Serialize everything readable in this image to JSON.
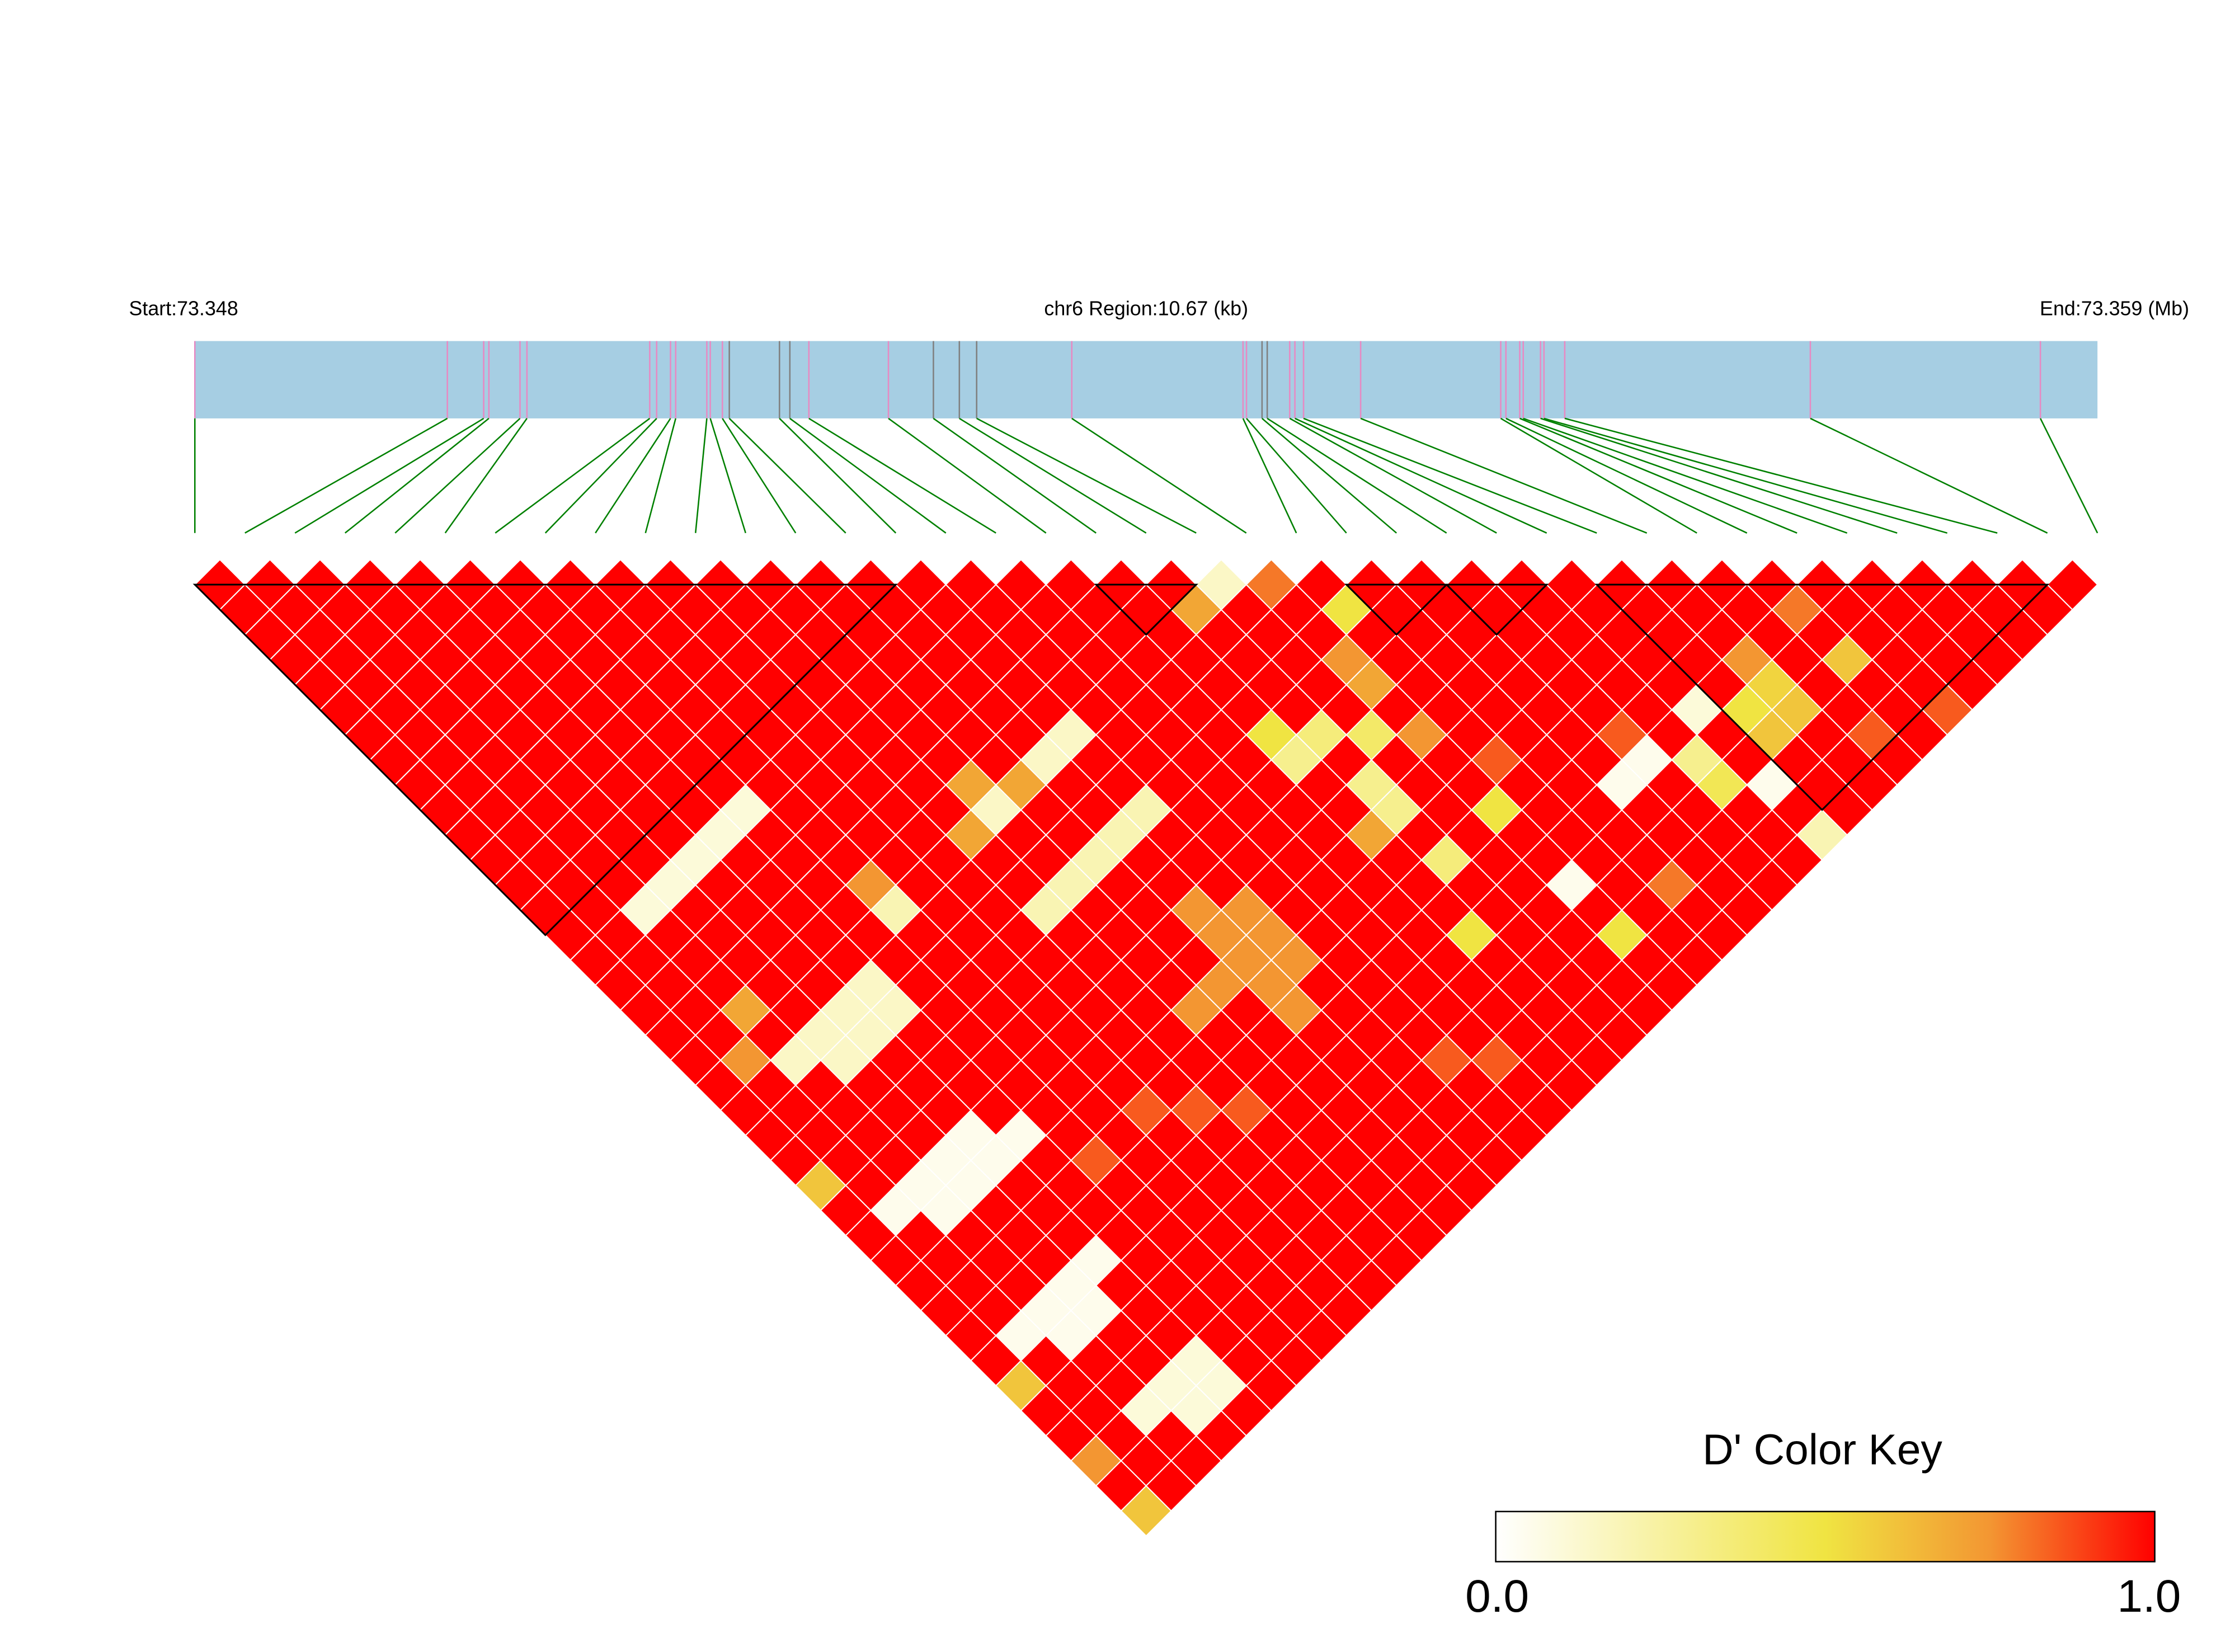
{
  "header": {
    "start_label": "Start:73.348",
    "region_label": "chr6 Region:10.67 (kb)",
    "end_label": "End:73.359 (Mb)"
  },
  "colors": {
    "gene_bar": "#A6CEE3",
    "snp_marker": "#E78AC3",
    "snp_marker_alt": "#808080",
    "connector": "#008000",
    "block_outline": "#000000",
    "scale_low": "#FFFFFF",
    "scale_mid": "#F0E442",
    "scale_orange": "#F39632",
    "scale_high": "#FF0000"
  },
  "color_key": {
    "title": "D' Color Key",
    "min_label": "0.0",
    "max_label": "1.0"
  },
  "chart_data": {
    "type": "heatmap",
    "measure": "D'",
    "chromosome": "chr6",
    "region_start_mb": 73.348,
    "region_end_mb": 73.359,
    "region_length_kb": 10.67,
    "snp_positions_mb": [
      73.348,
      73.34946,
      73.34967,
      73.3497,
      73.34988,
      73.34992,
      73.35063,
      73.35067,
      73.35075,
      73.35078,
      73.35096,
      73.35098,
      73.35105,
      73.35109,
      73.35138,
      73.35144,
      73.35155,
      73.35201,
      73.35227,
      73.35242,
      73.35252,
      73.35307,
      73.35406,
      73.35408,
      73.35417,
      73.3542,
      73.35433,
      73.35436,
      73.35441,
      73.35474,
      73.35555,
      73.35558,
      73.35566,
      73.35568,
      73.35578,
      73.3558,
      73.35592,
      73.35734,
      73.35867
    ],
    "alt_marker_snps": [
      13,
      14,
      15,
      18,
      19,
      20,
      24,
      25
    ],
    "default_value": 1.0,
    "value_range": [
      0,
      1
    ],
    "cells": [
      [
        20,
        21,
        0.15
      ],
      [
        19,
        21,
        0.7
      ],
      [
        21,
        22,
        0.8
      ],
      [
        22,
        24,
        0.5
      ],
      [
        21,
        25,
        0.75
      ],
      [
        21,
        26,
        0.7
      ],
      [
        18,
        25,
        0.5
      ],
      [
        18,
        26,
        0.3
      ],
      [
        19,
        26,
        0.35
      ],
      [
        20,
        27,
        0.4
      ],
      [
        21,
        28,
        0.75
      ],
      [
        19,
        28,
        0.3
      ],
      [
        19,
        29,
        0.3
      ],
      [
        18,
        29,
        0.7
      ],
      [
        21,
        31,
        0.5
      ],
      [
        19,
        31,
        0.35
      ],
      [
        18,
        33,
        0.5
      ],
      [
        21,
        34,
        0.05
      ],
      [
        21,
        36,
        0.5
      ],
      [
        24,
        33,
        0.05
      ],
      [
        25,
        33,
        0.05
      ],
      [
        26,
        34,
        0.3
      ],
      [
        27,
        33,
        0.1
      ],
      [
        26,
        35,
        0.45
      ],
      [
        27,
        36,
        0.05
      ],
      [
        27,
        38,
        0.2
      ],
      [
        28,
        34,
        0.5
      ],
      [
        29,
        34,
        0.55
      ],
      [
        28,
        35,
        0.6
      ],
      [
        29,
        35,
        0.6
      ],
      [
        29,
        33,
        0.75
      ],
      [
        31,
        35,
        0.6
      ],
      [
        31,
        33,
        0.8
      ],
      [
        2,
        16,
        0.1
      ],
      [
        3,
        16,
        0.1
      ],
      [
        4,
        16,
        0.1
      ],
      [
        5,
        16,
        0.1
      ],
      [
        6,
        16,
        0.1
      ],
      [
        7,
        21,
        0.2
      ],
      [
        7,
        20,
        0.75
      ],
      [
        10,
        24,
        0.2
      ],
      [
        11,
        24,
        0.2
      ],
      [
        12,
        24,
        0.2
      ],
      [
        13,
        24,
        0.2
      ],
      [
        14,
        24,
        0.2
      ],
      [
        11,
        20,
        0.7
      ],
      [
        11,
        21,
        0.15
      ],
      [
        12,
        21,
        0.7
      ],
      [
        10,
        21,
        0.7
      ],
      [
        14,
        21,
        0.15
      ],
      [
        13,
        21,
        0.15
      ],
      [
        2,
        22,
        0.15
      ],
      [
        3,
        22,
        0.15
      ],
      [
        4,
        22,
        0.15
      ],
      [
        5,
        22,
        0.15
      ],
      [
        3,
        23,
        0.15
      ],
      [
        4,
        23,
        0.15
      ],
      [
        5,
        23,
        0.15
      ],
      [
        2,
        20,
        0.7
      ],
      [
        1,
        27,
        0.05
      ],
      [
        2,
        27,
        0.05
      ],
      [
        3,
        27,
        0.05
      ],
      [
        4,
        27,
        0.05
      ],
      [
        2,
        28,
        0.05
      ],
      [
        3,
        28,
        0.05
      ],
      [
        4,
        28,
        0.05
      ],
      [
        5,
        28,
        0.05
      ],
      [
        1,
        32,
        0.05
      ],
      [
        2,
        32,
        0.05
      ],
      [
        3,
        32,
        0.05
      ],
      [
        4,
        32,
        0.05
      ],
      [
        2,
        33,
        0.05
      ],
      [
        3,
        33,
        0.05
      ],
      [
        2,
        36,
        0.1
      ],
      [
        3,
        36,
        0.1
      ],
      [
        4,
        36,
        0.1
      ],
      [
        3,
        37,
        0.1
      ],
      [
        4,
        37,
        0.1
      ],
      [
        13,
        27,
        0.75
      ],
      [
        13,
        28,
        0.75
      ],
      [
        13,
        29,
        0.75
      ],
      [
        14,
        28,
        0.75
      ],
      [
        14,
        29,
        0.75
      ],
      [
        14,
        30,
        0.75
      ],
      [
        12,
        29,
        0.75
      ],
      [
        13,
        30,
        0.75
      ],
      [
        13,
        31,
        0.75
      ],
      [
        11,
        29,
        0.75
      ],
      [
        0,
        36,
        0.75
      ],
      [
        0,
        38,
        0.6
      ],
      [
        0,
        33,
        0.6
      ],
      [
        0,
        25,
        0.6
      ],
      [
        1,
        21,
        0.75
      ],
      [
        22,
        30,
        0.85
      ],
      [
        25,
        32,
        0.85
      ],
      [
        8,
        30,
        0.85
      ],
      [
        9,
        31,
        0.85
      ],
      [
        10,
        32,
        0.85
      ],
      [
        15,
        35,
        0.85
      ],
      [
        16,
        36,
        0.85
      ],
      [
        6,
        30,
        0.85
      ],
      [
        23,
        36,
        0.8
      ],
      [
        30,
        37,
        0.85
      ],
      [
        32,
        38,
        0.85
      ]
    ],
    "blocks": [
      [
        0,
        13
      ],
      [
        18,
        19
      ],
      [
        23,
        24
      ],
      [
        25,
        26
      ],
      [
        28,
        36
      ]
    ]
  }
}
